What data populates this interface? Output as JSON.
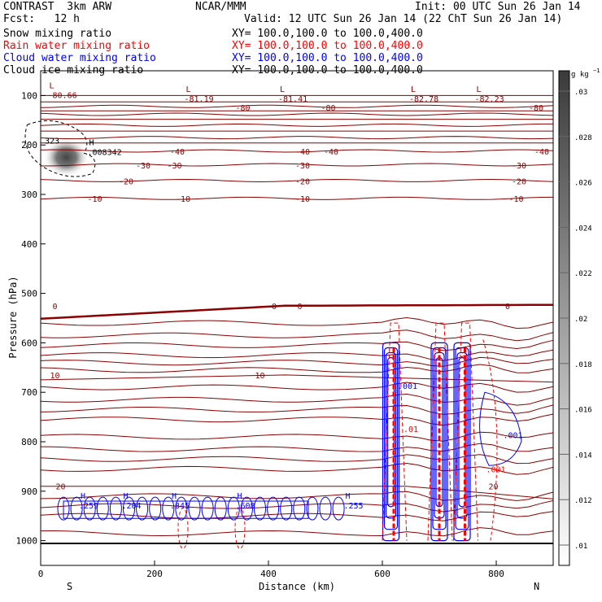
{
  "header": {
    "left_line1": "CONTRAST  3km ARW",
    "left_line2": "Fcst:   12 h",
    "center": "NCAR/MMM",
    "init": "Init: 00 UTC Sun 26 Jan 14",
    "valid": "Valid: 12 UTC Sun 26 Jan 14 (22 ChT Sun 26 Jan 14)",
    "fields": [
      {
        "name": "Snow mixing ratio",
        "xy": "XY= 100.0,100.0 to 100.0,400.0",
        "color": "#000000"
      },
      {
        "name": "Rain water mixing ratio",
        "xy": "XY= 100.0,100.0 to 100.0,400.0",
        "color": "#ff0000"
      },
      {
        "name": "Cloud water mixing ratio",
        "xy": "XY= 100.0,100.0 to 100.0,400.0",
        "color": "#0000ff"
      },
      {
        "name": "Cloud ice mixing ratio",
        "xy": "XY= 100.0,100.0 to 100.0,400.0",
        "color": "#000000"
      }
    ]
  },
  "colors": {
    "temperature": "#8b0000",
    "cloud_water": "#0000ff",
    "rain_water": "#ff0000",
    "frame": "#000000"
  },
  "chart_data": {
    "type": "heatmap",
    "xlabel": "Distance (km)",
    "ylabel": "Pressure (hPa)",
    "xlim": [
      0,
      900
    ],
    "ylim": [
      1050,
      50
    ],
    "x_ticks": [
      "0",
      "200",
      "400",
      "600",
      "800"
    ],
    "y_ticks": [
      "100",
      "200",
      "300",
      "400",
      "500",
      "600",
      "700",
      "800",
      "900",
      "1000"
    ],
    "x_end_labels": {
      "left": "S",
      "right": "N"
    },
    "colorbar": {
      "unit_label": "g kg",
      "unit_exponent": "−1",
      "ticks": [
        ".01",
        ".012",
        ".014",
        ".016",
        ".018",
        ".02",
        ".022",
        ".024",
        ".026",
        ".028",
        ".03"
      ]
    },
    "temperature_contours": [
      {
        "value": -80,
        "pressure": 122
      },
      {
        "value": -70,
        "pressure": 138
      },
      {
        "value": -60,
        "pressure": 160
      },
      {
        "value": -50,
        "pressure": 185
      },
      {
        "value": -40,
        "pressure": 212
      },
      {
        "value": -30,
        "pressure": 240
      },
      {
        "value": -20,
        "pressure": 272
      },
      {
        "value": -10,
        "pressure": 308
      },
      {
        "value": 0,
        "pressure": 525
      },
      {
        "value": 10,
        "pressure": 665
      },
      {
        "value": 20,
        "pressure": 890
      }
    ],
    "contour_labels": [
      {
        "text": "-80",
        "x": 355,
        "p": 124
      },
      {
        "text": "-80",
        "x": 505,
        "p": 124
      },
      {
        "text": "-80",
        "x": 870,
        "p": 124
      },
      {
        "text": "-40",
        "x": 240,
        "p": 213
      },
      {
        "text": "-40",
        "x": 460,
        "p": 213
      },
      {
        "text": "-40",
        "x": 510,
        "p": 213
      },
      {
        "text": "-40",
        "x": 880,
        "p": 213
      },
      {
        "text": "-30",
        "x": 180,
        "p": 241
      },
      {
        "text": "-30",
        "x": 235,
        "p": 241
      },
      {
        "text": "-30",
        "x": 460,
        "p": 241
      },
      {
        "text": "-30",
        "x": 840,
        "p": 241
      },
      {
        "text": "-20",
        "x": 150,
        "p": 273
      },
      {
        "text": "-20",
        "x": 460,
        "p": 273
      },
      {
        "text": "-20",
        "x": 840,
        "p": 273
      },
      {
        "text": "-10",
        "x": 95,
        "p": 308
      },
      {
        "text": "-10",
        "x": 250,
        "p": 308
      },
      {
        "text": "-10",
        "x": 460,
        "p": 308
      },
      {
        "text": "-10",
        "x": 835,
        "p": 308
      },
      {
        "text": "0",
        "x": 25,
        "p": 525
      },
      {
        "text": "0",
        "x": 410,
        "p": 525
      },
      {
        "text": "0",
        "x": 455,
        "p": 525
      },
      {
        "text": "0",
        "x": 820,
        "p": 525
      },
      {
        "text": "10",
        "x": 25,
        "p": 665
      },
      {
        "text": "10",
        "x": 385,
        "p": 665
      },
      {
        "text": "20",
        "x": 35,
        "p": 890
      },
      {
        "text": "20",
        "x": 795,
        "p": 890
      }
    ],
    "extrema": [
      {
        "mark": "L",
        "value": "-80.66",
        "x": 15,
        "p": 95,
        "color": "#8b0000"
      },
      {
        "mark": "L",
        "value": "-81.19",
        "x": 255,
        "p": 103,
        "color": "#8b0000"
      },
      {
        "mark": "L",
        "value": "-81.41",
        "x": 420,
        "p": 103,
        "color": "#8b0000"
      },
      {
        "mark": "L",
        "value": "-82.78",
        "x": 650,
        "p": 103,
        "color": "#8b0000"
      },
      {
        "mark": "L",
        "value": "-82.23",
        "x": 765,
        "p": 103,
        "color": "#8b0000"
      },
      {
        "mark": "",
        "value": "323",
        "x": 10,
        "p": 187,
        "color": "#000000"
      },
      {
        "mark": "H",
        "value": ".008342",
        "x": 85,
        "p": 210,
        "color": "#000000"
      },
      {
        "mark": "H",
        "value": ".259",
        "x": 70,
        "p": 925,
        "color": "#0000ff"
      },
      {
        "mark": "H",
        "value": ".204",
        "x": 145,
        "p": 925,
        "color": "#0000ff"
      },
      {
        "mark": "H",
        "value": ".845",
        "x": 230,
        "p": 925,
        "color": "#0000ff"
      },
      {
        "mark": "H",
        "value": ".608",
        "x": 345,
        "p": 925,
        "color": "#0000ff"
      },
      {
        "mark": "H",
        "value": ".255",
        "x": 535,
        "p": 925,
        "color": "#0000ff"
      },
      {
        "mark": "",
        "value": ".001",
        "x": 630,
        "p": 683,
        "color": "#0000ff"
      },
      {
        "mark": "",
        "value": ".001",
        "x": 815,
        "p": 783,
        "color": "#0000ff"
      },
      {
        "mark": "",
        "value": ".001",
        "x": 785,
        "p": 852,
        "color": "#ff0000"
      },
      {
        "mark": "",
        "value": ".01",
        "x": 640,
        "p": 770,
        "color": "#ff0000"
      }
    ],
    "snow_max": {
      "x": 45,
      "p": 225,
      "value": 0.03
    },
    "cloud_water_columns_km": [
      615,
      700,
      740
    ],
    "rain_columns_km": [
      620,
      700,
      745
    ]
  }
}
